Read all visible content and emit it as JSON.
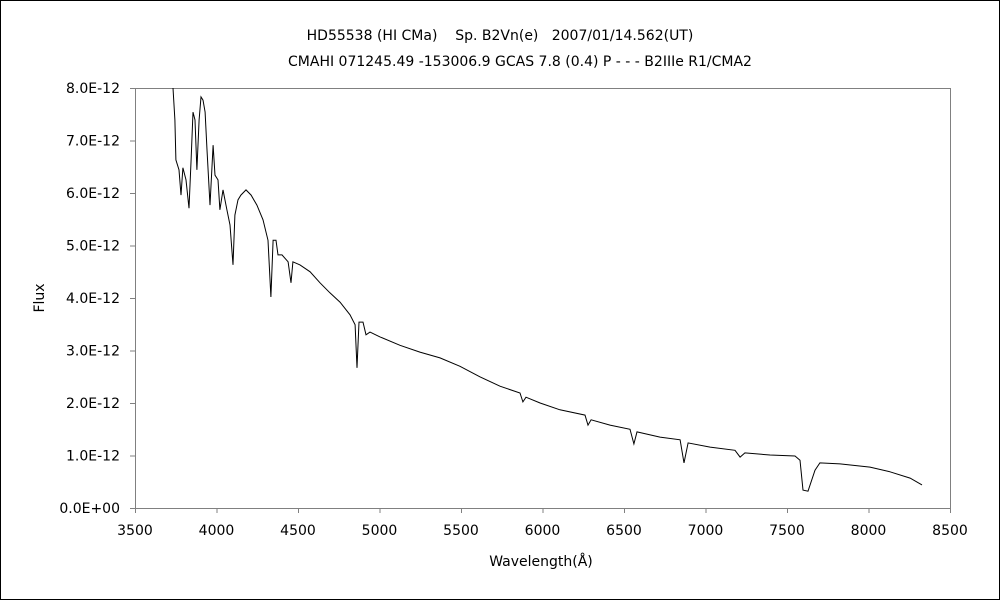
{
  "chart_data": {
    "type": "line",
    "title": "HD55538 (HI CMa)    Sp. B2Vn(e)   2007/01/14.562(UT)",
    "subtitle": "CMAHI 071245.49 -153006.9 GCAS 7.8 (0.4) P - - - B2IIIe R1/CMA2",
    "xlabel": "Wavelength(Å)",
    "ylabel": "Flux",
    "xlim": [
      3500,
      8500
    ],
    "ylim": [
      0,
      8e-12
    ],
    "grid": false,
    "legend": "none",
    "x_ticks": [
      "3500",
      "4000",
      "4500",
      "5000",
      "5500",
      "6000",
      "6500",
      "7000",
      "7500",
      "8000",
      "8500"
    ],
    "x_tick_values": [
      3500,
      4000,
      4500,
      5000,
      5500,
      6000,
      6500,
      7000,
      7500,
      8000,
      8500
    ],
    "y_ticks": [
      "0.0E+00",
      "1.0E-12",
      "2.0E-12",
      "3.0E-12",
      "4.0E-12",
      "5.0E-12",
      "6.0E-12",
      "7.0E-12",
      "8.0E-12"
    ],
    "y_tick_values": [
      0,
      1,
      2,
      3,
      4,
      5,
      6,
      7,
      8
    ],
    "y_unit_scale": "1E-12",
    "series": [
      {
        "name": "Flux",
        "color": "#000000",
        "x": [
          3733,
          3745,
          3751,
          3770,
          3782,
          3794,
          3813,
          3831,
          3844,
          3856,
          3868,
          3880,
          3893,
          3905,
          3917,
          3930,
          3942,
          3960,
          3979,
          3991,
          4009,
          4021,
          4040,
          4064,
          4083,
          4101,
          4113,
          4132,
          4150,
          4181,
          4212,
          4248,
          4285,
          4316,
          4334,
          4347,
          4365,
          4377,
          4402,
          4439,
          4457,
          4469,
          4512,
          4574,
          4635,
          4696,
          4758,
          4819,
          4850,
          4862,
          4874,
          4899,
          4917,
          4942,
          5003,
          5126,
          5248,
          5371,
          5494,
          5616,
          5739,
          5862,
          5880,
          5899,
          5985,
          6107,
          6261,
          6279,
          6298,
          6414,
          6537,
          6561,
          6580,
          6721,
          6844,
          6868,
          6893,
          7028,
          7181,
          7212,
          7242,
          7396,
          7549,
          7580,
          7598,
          7629,
          7672,
          7702,
          7825,
          8009,
          8132,
          8255,
          8328
        ],
        "y": [
          8.0,
          7.39,
          6.63,
          6.44,
          5.96,
          6.48,
          6.25,
          5.71,
          6.63,
          7.54,
          7.39,
          6.44,
          7.39,
          7.83,
          7.77,
          7.54,
          6.82,
          5.77,
          6.91,
          6.34,
          6.25,
          5.68,
          6.06,
          5.68,
          5.39,
          4.63,
          5.58,
          5.87,
          5.96,
          6.06,
          5.96,
          5.77,
          5.49,
          5.1,
          4.02,
          5.1,
          5.1,
          4.82,
          4.82,
          4.69,
          4.29,
          4.69,
          4.63,
          4.5,
          4.29,
          4.1,
          3.92,
          3.68,
          3.49,
          2.67,
          3.54,
          3.54,
          3.3,
          3.35,
          3.26,
          3.1,
          2.97,
          2.86,
          2.7,
          2.5,
          2.32,
          2.19,
          2.02,
          2.11,
          2.0,
          1.87,
          1.77,
          1.58,
          1.68,
          1.58,
          1.5,
          1.22,
          1.45,
          1.35,
          1.3,
          0.86,
          1.24,
          1.16,
          1.1,
          0.97,
          1.05,
          1.01,
          0.99,
          0.91,
          0.34,
          0.32,
          0.72,
          0.86,
          0.84,
          0.78,
          0.69,
          0.57,
          0.44
        ]
      }
    ]
  }
}
